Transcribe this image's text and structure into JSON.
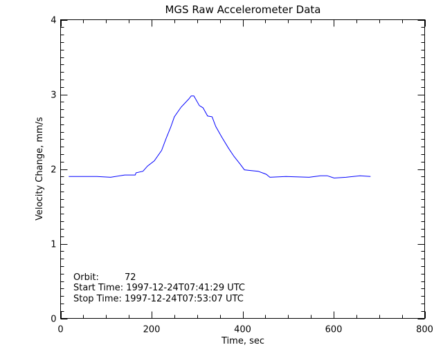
{
  "chart_data": {
    "type": "line",
    "title": "MGS Raw Accelerometer Data",
    "xlabel": "Time, sec",
    "ylabel": "Velocity Change, mm/s",
    "xlim": [
      0,
      800
    ],
    "ylim": [
      0,
      4
    ],
    "xticks": [
      "0",
      "200",
      "400",
      "600",
      "800"
    ],
    "yticks": [
      "0",
      "1",
      "2",
      "3",
      "4"
    ],
    "grid": false,
    "line_color": "#0000ff",
    "series": [
      {
        "x": [
          18,
          80,
          110,
          141,
          164,
          166,
          181,
          191,
          206,
          222,
          232,
          242,
          250,
          265,
          282,
          287,
          293,
          305,
          313,
          323,
          333,
          341,
          354,
          369,
          381,
          394,
          404,
          419,
          434,
          452,
          460,
          495,
          546,
          571,
          586,
          601,
          627,
          658,
          681
        ],
        "y": [
          1.9,
          1.9,
          1.89,
          1.92,
          1.92,
          1.95,
          1.97,
          2.04,
          2.11,
          2.25,
          2.41,
          2.56,
          2.7,
          2.83,
          2.94,
          2.98,
          2.98,
          2.85,
          2.82,
          2.71,
          2.7,
          2.57,
          2.43,
          2.28,
          2.17,
          2.07,
          1.99,
          1.98,
          1.97,
          1.93,
          1.89,
          1.9,
          1.89,
          1.91,
          1.91,
          1.88,
          1.89,
          1.91,
          1.9
        ]
      }
    ],
    "annotations": {
      "orbit_label": "Orbit:",
      "orbit_value": "72",
      "start_time": "Start Time: 1997-12-24T07:41:29 UTC",
      "stop_time": "Stop Time: 1997-12-24T07:53:07 UTC"
    }
  }
}
